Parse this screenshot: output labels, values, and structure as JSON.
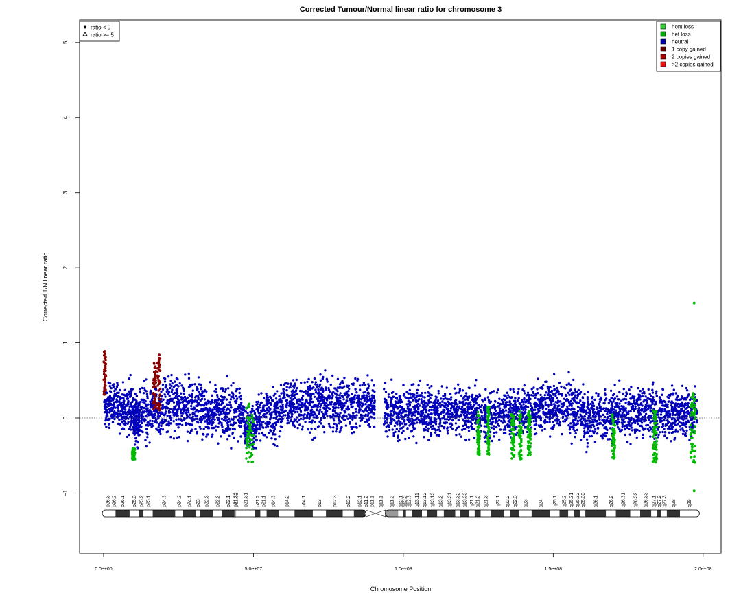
{
  "chart_data": {
    "type": "scatter",
    "title": "Corrected Tumour/Normal linear ratio for chromosome  3",
    "xlabel": "Chromosome Position",
    "ylabel": "Corrected T/N linear ratio",
    "xlim": [
      -8000000,
      206000000
    ],
    "ylim": [
      -1.8,
      5.3
    ],
    "x_ticks": [
      0,
      50000000,
      100000000,
      150000000,
      200000000
    ],
    "x_tick_labels": [
      "0.0e+00",
      "5.0e+07",
      "1.0e+08",
      "1.5e+08",
      "2.0e+08"
    ],
    "y_ticks": [
      -1,
      0,
      1,
      2,
      3,
      4,
      5
    ],
    "y_tick_labels": [
      "−1",
      "0",
      "1",
      "2",
      "3",
      "4",
      "5"
    ],
    "reference_line": 0,
    "shape_legend": {
      "position": "top-left",
      "items": [
        {
          "label": "ratio < 5",
          "shape": "filled-circle"
        },
        {
          "label": "ratio >= 5",
          "shape": "open-triangle"
        }
      ]
    },
    "color_legend": {
      "position": "top-right",
      "items": [
        {
          "label": "hom loss",
          "color": "#33cc33"
        },
        {
          "label": "het loss",
          "color": "#00aa00"
        },
        {
          "label": "neutral",
          "color": "#0000aa"
        },
        {
          "label": "1 copy gained",
          "color": "#660000"
        },
        {
          "label": "2 copies gained",
          "color": "#aa0000"
        },
        {
          "label": ">2 copies gained",
          "color": "#ee1111"
        }
      ]
    },
    "colors": {
      "neutral": "#0000bb",
      "loss": "#00bb00",
      "gain": "#880000"
    },
    "neutral_bands": [
      {
        "start": 200000,
        "end": 5000000,
        "lo": -0.25,
        "hi": 0.6
      },
      {
        "start": 5000000,
        "end": 10000000,
        "lo": -0.35,
        "hi": 0.6
      },
      {
        "start": 10000000,
        "end": 12000000,
        "lo": -0.45,
        "hi": 0.4
      },
      {
        "start": 12000000,
        "end": 20000000,
        "lo": -0.45,
        "hi": 0.6
      },
      {
        "start": 20000000,
        "end": 32000000,
        "lo": -0.35,
        "hi": 0.65
      },
      {
        "start": 32000000,
        "end": 47000000,
        "lo": -0.4,
        "hi": 0.55
      },
      {
        "start": 47000000,
        "end": 51000000,
        "lo": -0.5,
        "hi": 0.25
      },
      {
        "start": 51000000,
        "end": 58000000,
        "lo": -0.45,
        "hi": 0.5
      },
      {
        "start": 58000000,
        "end": 75000000,
        "lo": -0.3,
        "hi": 0.65
      },
      {
        "start": 75000000,
        "end": 90500000,
        "lo": -0.3,
        "hi": 0.65
      },
      {
        "start": 93500000,
        "end": 110000000,
        "lo": -0.4,
        "hi": 0.55
      },
      {
        "start": 110000000,
        "end": 125000000,
        "lo": -0.35,
        "hi": 0.55
      },
      {
        "start": 125000000,
        "end": 140000000,
        "lo": -0.4,
        "hi": 0.5
      },
      {
        "start": 140000000,
        "end": 160000000,
        "lo": -0.35,
        "hi": 0.6
      },
      {
        "start": 160000000,
        "end": 170000000,
        "lo": -0.45,
        "hi": 0.55
      },
      {
        "start": 170000000,
        "end": 184000000,
        "lo": -0.4,
        "hi": 0.55
      },
      {
        "start": 184000000,
        "end": 198000000,
        "lo": -0.4,
        "hi": 0.5
      }
    ],
    "loss_regions": [
      {
        "start": 9500000,
        "end": 10500000,
        "lo": -0.55,
        "hi": -0.4
      },
      {
        "start": 47500000,
        "end": 50000000,
        "lo": -0.6,
        "hi": 0.2
      },
      {
        "start": 124700000,
        "end": 125500000,
        "lo": -0.5,
        "hi": 0.1
      },
      {
        "start": 128000000,
        "end": 128700000,
        "lo": -0.5,
        "hi": 0.15
      },
      {
        "start": 136000000,
        "end": 137000000,
        "lo": -0.55,
        "hi": 0.05
      },
      {
        "start": 138500000,
        "end": 139500000,
        "lo": -0.55,
        "hi": 0.1
      },
      {
        "start": 141500000,
        "end": 142500000,
        "lo": -0.5,
        "hi": 0.1
      },
      {
        "start": 169600000,
        "end": 170600000,
        "lo": -0.55,
        "hi": 0.05
      },
      {
        "start": 183200000,
        "end": 184600000,
        "lo": -0.6,
        "hi": 0.1
      },
      {
        "start": 195800000,
        "end": 197500000,
        "lo": -0.6,
        "hi": 0.35
      }
    ],
    "gain_regions": [
      {
        "start": 0,
        "end": 800000,
        "lo": 0.3,
        "hi": 0.9
      },
      {
        "start": 16500000,
        "end": 17500000,
        "lo": 0.1,
        "hi": 0.75
      },
      {
        "start": 18000000,
        "end": 19000000,
        "lo": 0.1,
        "hi": 0.85
      }
    ],
    "outlier_points": [
      {
        "x": 197000000,
        "y": 1.53,
        "class": "loss"
      },
      {
        "x": 197000000,
        "y": -0.97,
        "class": "loss"
      }
    ],
    "legend_triangle": {
      "x": 197000000,
      "y": 5.02
    },
    "ideogram": {
      "y": -1.27,
      "centromere": [
        87500000,
        94000000
      ],
      "bands": [
        {
          "name": "p26.3",
          "start": 0,
          "end": 2800000,
          "stain": "white"
        },
        {
          "name": "p26.2",
          "start": 2800000,
          "end": 4000000,
          "stain": "white"
        },
        {
          "name": "p26.1",
          "start": 4000000,
          "end": 8700000,
          "stain": "dark"
        },
        {
          "name": "p25.3",
          "start": 8700000,
          "end": 11800000,
          "stain": "white"
        },
        {
          "name": "p25.2",
          "start": 11800000,
          "end": 13300000,
          "stain": "dark"
        },
        {
          "name": "p25.1",
          "start": 13300000,
          "end": 16400000,
          "stain": "white"
        },
        {
          "name": "p24.3",
          "start": 16400000,
          "end": 23900000,
          "stain": "dark"
        },
        {
          "name": "p24.2",
          "start": 23900000,
          "end": 26400000,
          "stain": "white"
        },
        {
          "name": "p24.1",
          "start": 26400000,
          "end": 30900000,
          "stain": "dark"
        },
        {
          "name": "p23",
          "start": 30900000,
          "end": 32100000,
          "stain": "white"
        },
        {
          "name": "p22.3",
          "start": 32100000,
          "end": 36500000,
          "stain": "dark"
        },
        {
          "name": "p22.2",
          "start": 36500000,
          "end": 39400000,
          "stain": "white"
        },
        {
          "name": "p22.1",
          "start": 39400000,
          "end": 43700000,
          "stain": "dark"
        },
        {
          "name": "p21.33",
          "start": 43700000,
          "end": 44100000,
          "stain": "white"
        },
        {
          "name": "p21.32",
          "start": 44100000,
          "end": 44200000,
          "stain": "dark"
        },
        {
          "name": "p21.31",
          "start": 44200000,
          "end": 50600000,
          "stain": "white"
        },
        {
          "name": "p21.2",
          "start": 50600000,
          "end": 52300000,
          "stain": "dark"
        },
        {
          "name": "p21.1",
          "start": 52300000,
          "end": 54400000,
          "stain": "white"
        },
        {
          "name": "p14.3",
          "start": 54400000,
          "end": 58600000,
          "stain": "dark"
        },
        {
          "name": "p14.2",
          "start": 58600000,
          "end": 63700000,
          "stain": "white"
        },
        {
          "name": "p14.1",
          "start": 63700000,
          "end": 69800000,
          "stain": "dark"
        },
        {
          "name": "p13",
          "start": 69800000,
          "end": 74200000,
          "stain": "white"
        },
        {
          "name": "p12.3",
          "start": 74200000,
          "end": 79800000,
          "stain": "dark"
        },
        {
          "name": "p12.2",
          "start": 79800000,
          "end": 83500000,
          "stain": "white"
        },
        {
          "name": "p12.1",
          "start": 83500000,
          "end": 87200000,
          "stain": "dark"
        },
        {
          "name": "p11.2",
          "start": 87200000,
          "end": 87900000,
          "stain": "hatch"
        },
        {
          "name": "p11.1",
          "start": 87900000,
          "end": 91000000,
          "stain": "centro"
        },
        {
          "name": "q11.1",
          "start": 91000000,
          "end": 93900000,
          "stain": "centro"
        },
        {
          "name": "q11.2",
          "start": 93900000,
          "end": 98300000,
          "stain": "gray"
        },
        {
          "name": "q12.1",
          "start": 98300000,
          "end": 100000000,
          "stain": "white"
        },
        {
          "name": "q12.2",
          "start": 100000000,
          "end": 100900000,
          "stain": "dark"
        },
        {
          "name": "q12.3",
          "start": 100900000,
          "end": 102800000,
          "stain": "white"
        },
        {
          "name": "q13.11",
          "start": 102800000,
          "end": 106200000,
          "stain": "dark"
        },
        {
          "name": "q13.12",
          "start": 106200000,
          "end": 107900000,
          "stain": "white"
        },
        {
          "name": "q13.13",
          "start": 107900000,
          "end": 111300000,
          "stain": "dark"
        },
        {
          "name": "q13.2",
          "start": 111300000,
          "end": 113500000,
          "stain": "white"
        },
        {
          "name": "q13.31",
          "start": 113500000,
          "end": 117300000,
          "stain": "dark"
        },
        {
          "name": "q13.32",
          "start": 117300000,
          "end": 119000000,
          "stain": "white"
        },
        {
          "name": "q13.33",
          "start": 119000000,
          "end": 121900000,
          "stain": "dark"
        },
        {
          "name": "q21.1",
          "start": 121900000,
          "end": 123800000,
          "stain": "white"
        },
        {
          "name": "q21.2",
          "start": 123800000,
          "end": 125800000,
          "stain": "dark"
        },
        {
          "name": "q21.3",
          "start": 125800000,
          "end": 129200000,
          "stain": "white"
        },
        {
          "name": "q22.1",
          "start": 129200000,
          "end": 133700000,
          "stain": "dark"
        },
        {
          "name": "q22.2",
          "start": 133700000,
          "end": 135700000,
          "stain": "white"
        },
        {
          "name": "q22.3",
          "start": 135700000,
          "end": 138700000,
          "stain": "dark"
        },
        {
          "name": "q23",
          "start": 138700000,
          "end": 142800000,
          "stain": "white"
        },
        {
          "name": "q24",
          "start": 142800000,
          "end": 148900000,
          "stain": "dark"
        },
        {
          "name": "q25.1",
          "start": 148900000,
          "end": 152100000,
          "stain": "white"
        },
        {
          "name": "q25.2",
          "start": 152100000,
          "end": 155000000,
          "stain": "dark"
        },
        {
          "name": "q25.31",
          "start": 155000000,
          "end": 157000000,
          "stain": "white"
        },
        {
          "name": "q25.32",
          "start": 157000000,
          "end": 159000000,
          "stain": "dark"
        },
        {
          "name": "q25.33",
          "start": 159000000,
          "end": 160700000,
          "stain": "white"
        },
        {
          "name": "q26.1",
          "start": 160700000,
          "end": 167600000,
          "stain": "dark"
        },
        {
          "name": "q26.2",
          "start": 167600000,
          "end": 170900000,
          "stain": "white"
        },
        {
          "name": "q26.31",
          "start": 170900000,
          "end": 175700000,
          "stain": "dark"
        },
        {
          "name": "q26.32",
          "start": 175700000,
          "end": 179000000,
          "stain": "white"
        },
        {
          "name": "q26.33",
          "start": 179000000,
          "end": 182700000,
          "stain": "dark"
        },
        {
          "name": "q27.1",
          "start": 182700000,
          "end": 184500000,
          "stain": "white"
        },
        {
          "name": "q27.2",
          "start": 184500000,
          "end": 186000000,
          "stain": "dark"
        },
        {
          "name": "q27.3",
          "start": 186000000,
          "end": 187900000,
          "stain": "white"
        },
        {
          "name": "q28",
          "start": 187900000,
          "end": 192300000,
          "stain": "dark"
        },
        {
          "name": "q29",
          "start": 192300000,
          "end": 198300000,
          "stain": "white"
        }
      ]
    }
  }
}
